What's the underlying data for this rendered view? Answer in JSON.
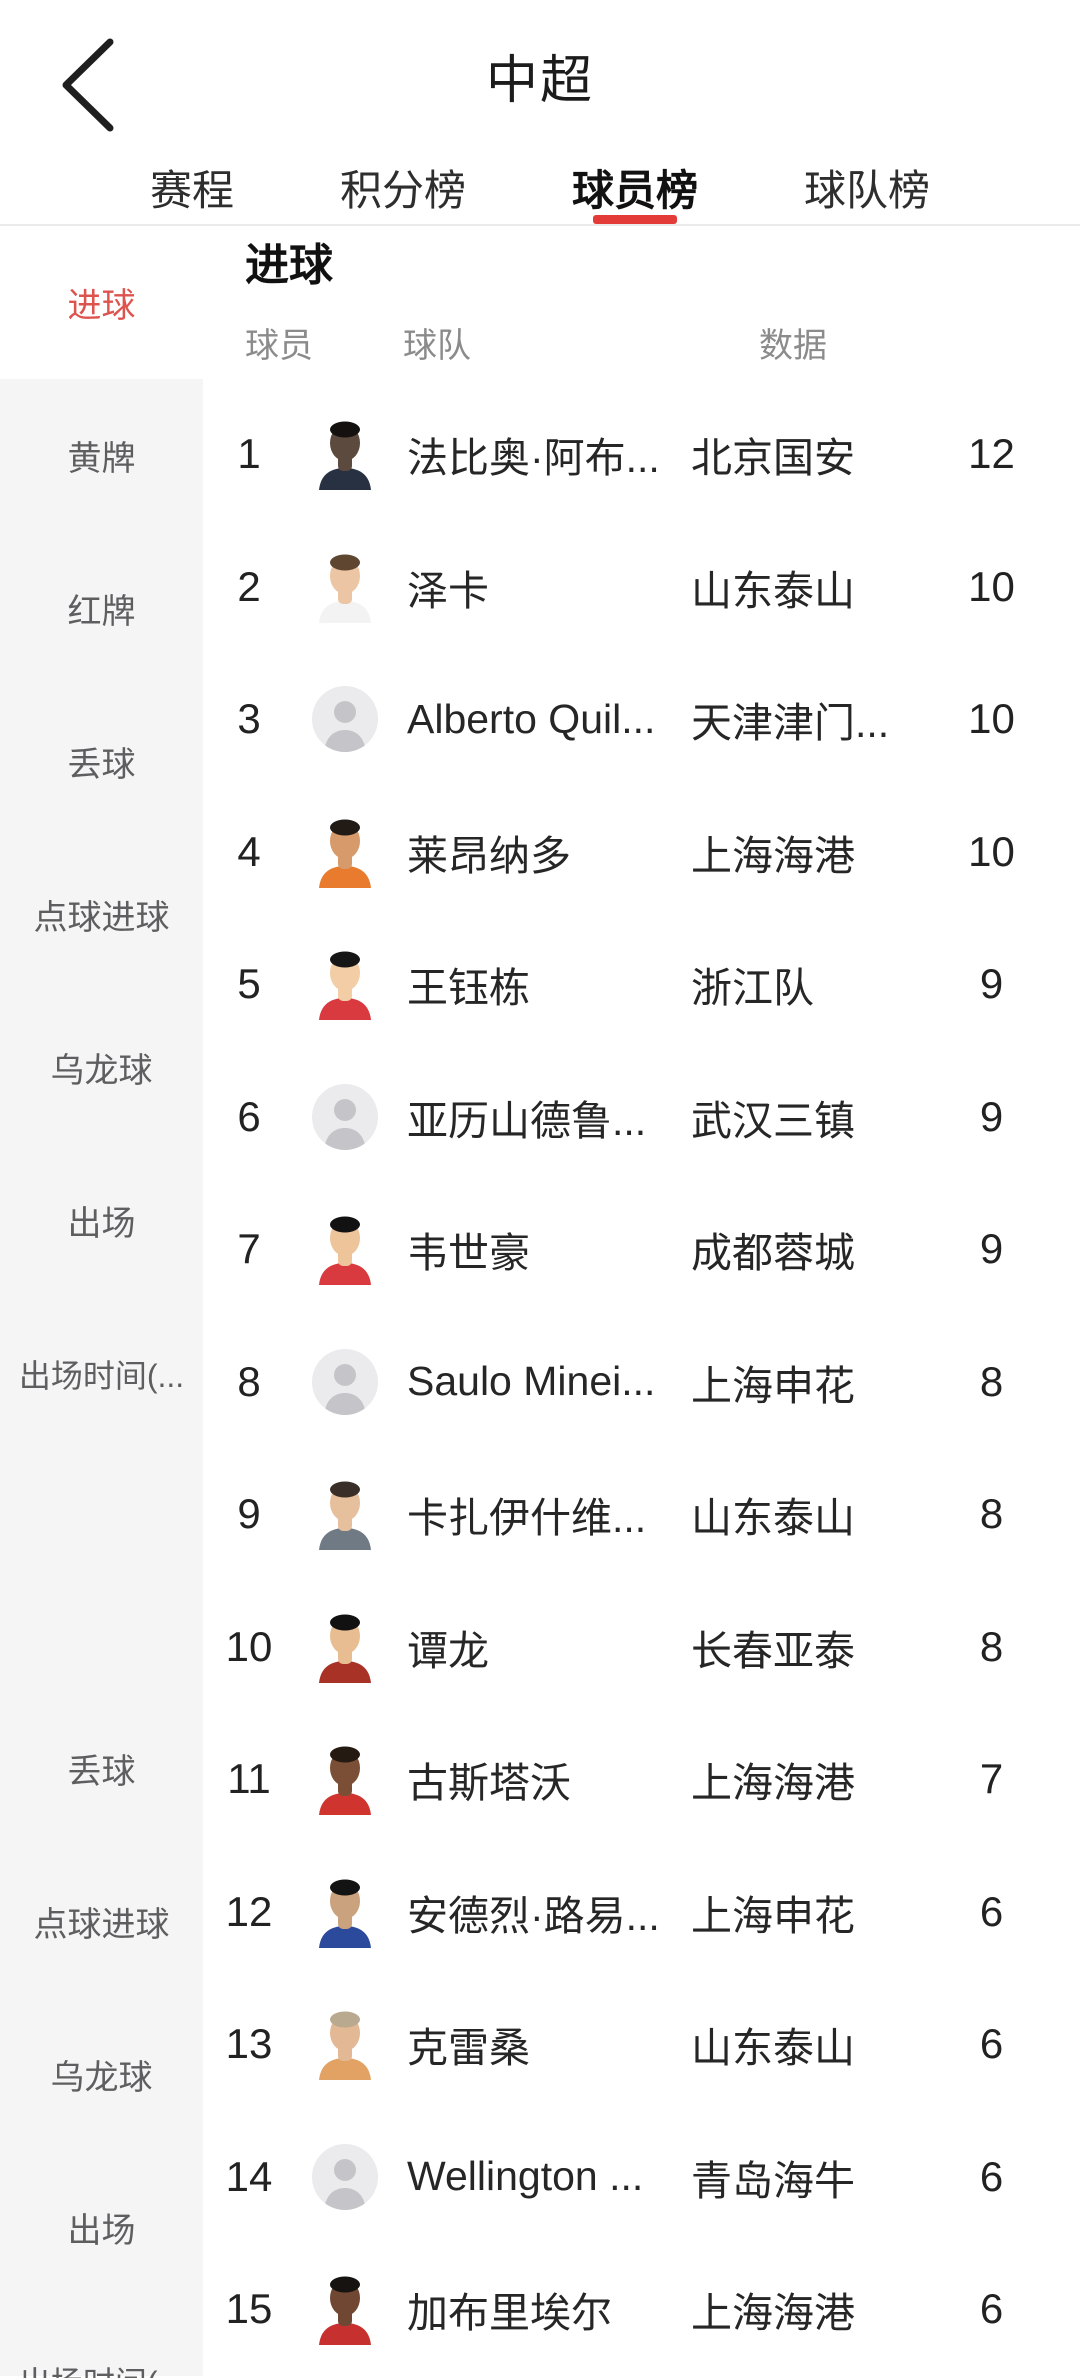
{
  "colors": {
    "accent_red": "#e23b38",
    "active_item_red": "#dd534e",
    "sidebar_bg": "#f5f5f6",
    "sidebar_text": "#5e5e60",
    "muted_gray": "#8b8b8b",
    "divider": "#ebebeb",
    "text_dark": "#222222",
    "placeholder_bg": "#ebebed",
    "placeholder_fg": "#c5c5c9"
  },
  "header": {
    "back_icon": "chevron-left-icon",
    "title": "中超"
  },
  "tabs": [
    {
      "label": "赛程",
      "active": false
    },
    {
      "label": "积分榜",
      "active": false
    },
    {
      "label": "球员榜",
      "active": true
    },
    {
      "label": "球队榜",
      "active": false
    }
  ],
  "sidebar": {
    "active_item": "进球",
    "groups": [
      {
        "items": [
          "进球",
          "黄牌",
          "红牌",
          "丢球",
          "点球进球",
          "乌龙球",
          "出场",
          "出场时间(..."
        ]
      },
      {
        "items": [
          "丢球",
          "点球进球",
          "乌龙球",
          "出场",
          "出场时间(..."
        ]
      }
    ]
  },
  "main": {
    "section_title": "进球",
    "columns": {
      "player": "球员",
      "team": "球队",
      "value": "数据"
    },
    "rows": [
      {
        "rank": 1,
        "player": "法比奥·阿布...",
        "team": "北京国安",
        "value": 12,
        "avatar": {
          "type": "photo",
          "skin": "#5d4a3e",
          "hair": "#14110e",
          "shirt": "#273142"
        }
      },
      {
        "rank": 2,
        "player": "泽卡",
        "team": "山东泰山",
        "value": 10,
        "avatar": {
          "type": "photo",
          "skin": "#ecc6a4",
          "hair": "#5f4630",
          "shirt": "#f3f3f3"
        }
      },
      {
        "rank": 3,
        "player": "Alberto Quil...",
        "team": "天津津门...",
        "value": 10,
        "avatar": {
          "type": "placeholder"
        }
      },
      {
        "rank": 4,
        "player": "莱昂纳多",
        "team": "上海海港",
        "value": 10,
        "avatar": {
          "type": "photo",
          "skin": "#d79a6b",
          "hair": "#221a14",
          "shirt": "#e87b2e"
        }
      },
      {
        "rank": 5,
        "player": "王钰栋",
        "team": "浙江队",
        "value": 9,
        "avatar": {
          "type": "photo",
          "skin": "#f2cda6",
          "hair": "#161616",
          "shirt": "#d93a3f"
        }
      },
      {
        "rank": 6,
        "player": "亚历山德鲁...",
        "team": "武汉三镇",
        "value": 9,
        "avatar": {
          "type": "placeholder"
        }
      },
      {
        "rank": 7,
        "player": "韦世豪",
        "team": "成都蓉城",
        "value": 9,
        "avatar": {
          "type": "photo",
          "skin": "#eec49b",
          "hair": "#121212",
          "shirt": "#d93a3f"
        }
      },
      {
        "rank": 8,
        "player": "Saulo Minei...",
        "team": "上海申花",
        "value": 8,
        "avatar": {
          "type": "placeholder"
        }
      },
      {
        "rank": 9,
        "player": "卡扎伊什维...",
        "team": "山东泰山",
        "value": 8,
        "avatar": {
          "type": "photo",
          "skin": "#e6bf9c",
          "hair": "#3a2f28",
          "shirt": "#707a85"
        }
      },
      {
        "rank": 10,
        "player": "谭龙",
        "team": "长春亚泰",
        "value": 8,
        "avatar": {
          "type": "photo",
          "skin": "#e8bd92",
          "hair": "#111111",
          "shirt": "#a93226"
        }
      },
      {
        "rank": 11,
        "player": "古斯塔沃",
        "team": "上海海港",
        "value": 7,
        "avatar": {
          "type": "photo",
          "skin": "#7b4f35",
          "hair": "#241a12",
          "shirt": "#d0342f"
        }
      },
      {
        "rank": 12,
        "player": "安德烈·路易...",
        "team": "上海申花",
        "value": 6,
        "avatar": {
          "type": "photo",
          "skin": "#caa27e",
          "hair": "#131313",
          "shirt": "#2b4a9b"
        }
      },
      {
        "rank": 13,
        "player": "克雷桑",
        "team": "山东泰山",
        "value": 6,
        "avatar": {
          "type": "photo",
          "skin": "#e3b894",
          "hair": "#b9a98f",
          "shirt": "#e2a263"
        }
      },
      {
        "rank": 14,
        "player": "Wellington ...",
        "team": "青岛海牛",
        "value": 6,
        "avatar": {
          "type": "placeholder"
        }
      },
      {
        "rank": 15,
        "player": "加布里埃尔",
        "team": "上海海港",
        "value": 6,
        "avatar": {
          "type": "photo",
          "skin": "#6f4733",
          "hair": "#161310",
          "shirt": "#c6312f"
        }
      }
    ]
  }
}
